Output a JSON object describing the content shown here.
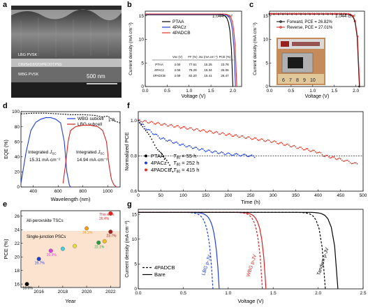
{
  "panels": {
    "a": {
      "letter": "a",
      "layers": [
        "LBG PVSK",
        "C60/SnO2/IZO/PEDOT:PSS",
        "WBG PVSK"
      ],
      "scale_bar": "500 nm"
    },
    "b": {
      "letter": "b",
      "area": "1.044 cm²",
      "ylabel": "Current density (mA cm⁻²)",
      "xlabel": "Voltage (V)",
      "legend": [
        "PTAA",
        "4PACz",
        "4PADCB"
      ],
      "table_header": [
        "",
        "Voc (V)",
        "FF (%)",
        "Jsc (mA cm⁻²)",
        "PCE (%)"
      ],
      "table_rows": [
        [
          "PTAA",
          "2.00",
          "77.61",
          "15.25",
          "23.78"
        ],
        [
          "4PACz",
          "2.06",
          "79.29",
          "15.34",
          "25.06"
        ],
        [
          "4PADCB",
          "2.09",
          "82.20",
          "15.41",
          "26.47"
        ]
      ]
    },
    "c": {
      "letter": "c",
      "area": "1.044 cm²",
      "ylabel": "Current density (mA cm⁻²)",
      "xlabel": "Voltage (V)",
      "legend": [
        "Forward, PCE = 26.82%",
        "Reverse, PCE = 27.01%"
      ]
    },
    "d": {
      "letter": "d",
      "ylabel": "EQE (%)",
      "xlabel": "Wavelength (nm)",
      "legend": [
        "WBG subcell",
        "LBG subcell"
      ],
      "oneminusr": "1-R",
      "integrated_label": "Integrated",
      "jsc_label": "J",
      "jsc_sub": "SC",
      "annot_wbg": "15.31 mA·cm⁻²",
      "annot_lbg": "14.94 mA·cm⁻²"
    },
    "e": {
      "letter": "e",
      "ylabel": "PCE (%)",
      "xlabel": "Year",
      "tag_all": "All-perovskite TSCs",
      "tag_single": "Single-junction PSCs",
      "this_work": "This work",
      "this_work_val": "26.4%"
    },
    "f": {
      "letter": "f",
      "ylabel": "Normalized PCE",
      "xlabel": "Time (h)",
      "legend": [
        {
          "name": "PTAA",
          "t80": "55 h"
        },
        {
          "name": "4PACz",
          "t80": "252 h"
        },
        {
          "name": "4PADCB",
          "t80": "415 h"
        }
      ],
      "t80_label": "T",
      "t80_sub": "80",
      "eq": "= "
    },
    "g": {
      "letter": "g",
      "ylabel": "Current density (mA cm⁻²)",
      "xlabel": "Voltage (V)",
      "legend": [
        "4PADCB",
        "Bare"
      ],
      "labels": [
        "LBG p-JV",
        "WBG p-JV",
        "Tandem p-JV"
      ]
    }
  },
  "colors": {
    "ptaa": "#000000",
    "pacz": "#1f3fd6",
    "padcb": "#e8301c",
    "red": "#d62020",
    "blue": "#1f3fd6"
  },
  "chart_data": [
    {
      "panel": "b",
      "type": "line",
      "x_range": [
        0,
        2.2
      ],
      "ylim": [
        0,
        16
      ],
      "xticks": [
        0.0,
        0.5,
        1.0,
        1.5,
        2.0
      ],
      "yticks": [
        0,
        5,
        10,
        15
      ],
      "series": [
        {
          "name": "PTAA",
          "voc": 2.0,
          "jsc": 15.25
        },
        {
          "name": "4PACz",
          "voc": 2.06,
          "jsc": 15.34
        },
        {
          "name": "4PADCB",
          "voc": 2.09,
          "jsc": 15.41
        }
      ]
    },
    {
      "panel": "c",
      "type": "line",
      "x_range": [
        0,
        2.2
      ],
      "ylim": [
        0,
        16
      ],
      "xticks": [
        0.0,
        0.5,
        1.0,
        1.5,
        2.0
      ],
      "yticks": [
        0,
        5,
        10,
        15
      ],
      "series": [
        {
          "name": "Forward, PCE = 26.82%",
          "voc": 2.08,
          "jsc": 15.4
        },
        {
          "name": "Reverse, PCE = 27.01%",
          "voc": 2.09,
          "jsc": 15.45
        }
      ]
    },
    {
      "panel": "d",
      "type": "line",
      "xlim": [
        300,
        1100
      ],
      "ylim": [
        0,
        100
      ],
      "xticks": [
        400,
        600,
        800,
        1000
      ],
      "yticks": [
        0,
        20,
        40,
        60,
        80,
        100
      ],
      "series": [
        {
          "name": "WBG subcell",
          "x": [
            300,
            340,
            380,
            420,
            460,
            500,
            540,
            580,
            620,
            650,
            670,
            690,
            700
          ],
          "y": [
            5,
            45,
            75,
            86,
            90,
            92,
            92,
            90,
            85,
            60,
            20,
            3,
            0
          ]
        },
        {
          "name": "LBG subcell",
          "x": [
            640,
            660,
            680,
            700,
            740,
            800,
            860,
            920,
            960,
            990,
            1010,
            1030,
            1050,
            1070
          ],
          "y": [
            5,
            30,
            60,
            75,
            80,
            82,
            82,
            80,
            75,
            60,
            30,
            10,
            3,
            0
          ]
        },
        {
          "name": "1-R",
          "x": [
            300,
            400,
            500,
            600,
            700,
            800,
            900,
            950,
            1000,
            1050,
            1100
          ],
          "y": [
            97,
            98,
            98,
            97,
            96,
            96,
            95,
            93,
            94,
            88,
            85
          ]
        }
      ]
    },
    {
      "panel": "e",
      "type": "scatter",
      "xlim": [
        2014.5,
        2022.8
      ],
      "ylim": [
        15.5,
        26.8
      ],
      "xticks": [
        2014,
        2016,
        2018,
        2020,
        2022
      ],
      "yticks": [
        16,
        18,
        20,
        22,
        24,
        26
      ],
      "points": [
        {
          "x": 2015,
          "y": 16.0,
          "label": "16.0%",
          "color": "#000000"
        },
        {
          "x": 2016,
          "y": 19.7,
          "label": "19.7%",
          "color": "#1f3fd6"
        },
        {
          "x": 2017,
          "y": 20.9,
          "label": "20.9%",
          "color": "#e040e0"
        },
        {
          "x": 2018,
          "y": 21.2,
          "label": "",
          "color": "#40d0e0"
        },
        {
          "x": 2019,
          "y": 21.6,
          "label": "",
          "color": "#e0e040"
        },
        {
          "x": 2020,
          "y": 24.2,
          "label": "24.2%",
          "color": "#f0a020"
        },
        {
          "x": 2021,
          "y": 22.1,
          "label": "22.1%",
          "color": "#20a040"
        },
        {
          "x": 2021.5,
          "y": 22.3,
          "label": "",
          "color": "#f0c020"
        },
        {
          "x": 2022,
          "y": 23.7,
          "label": "23.7%",
          "color": "#a02020"
        },
        {
          "x": 2022,
          "y": 26.4,
          "label": "",
          "color": "#e82020"
        }
      ]
    },
    {
      "panel": "f",
      "type": "line",
      "xlim": [
        0,
        500
      ],
      "ylim": [
        0.6,
        1.05
      ],
      "xticks": [
        0,
        50,
        100,
        150,
        200,
        250,
        300,
        350,
        400,
        450,
        500
      ],
      "yticks": [
        0.6,
        0.8,
        1.0
      ],
      "series": [
        {
          "name": "PTAA",
          "x": [
            0,
            10,
            20,
            30,
            40,
            50,
            55,
            60,
            70,
            80
          ],
          "y": [
            1.0,
            0.97,
            0.93,
            0.89,
            0.85,
            0.82,
            0.8,
            0.78,
            0.75,
            0.7
          ]
        },
        {
          "name": "4PACz",
          "x": [
            0,
            20,
            50,
            100,
            150,
            200,
            252,
            262
          ],
          "y": [
            1.0,
            0.95,
            0.9,
            0.86,
            0.83,
            0.81,
            0.8,
            0.78
          ]
        },
        {
          "name": "4PADCB",
          "x": [
            0,
            50,
            100,
            150,
            200,
            250,
            300,
            350,
            400,
            415,
            450,
            490
          ],
          "y": [
            1.0,
            0.98,
            0.96,
            0.94,
            0.92,
            0.9,
            0.88,
            0.85,
            0.82,
            0.8,
            0.78,
            0.75
          ]
        }
      ],
      "reference_line": 0.8
    },
    {
      "panel": "g",
      "type": "line",
      "xlim": [
        0,
        2.5
      ],
      "ylim": [
        0,
        16
      ],
      "xticks": [
        0.0,
        0.5,
        1.0,
        1.5,
        2.0,
        2.5
      ],
      "yticks": [
        0,
        5,
        10,
        15
      ],
      "series": [
        {
          "name": "LBG p-JV 4PADCB",
          "voc": 0.83,
          "jsc": 15.4,
          "style": "dash",
          "color": "#1f3fd6"
        },
        {
          "name": "LBG p-JV Bare",
          "voc": 0.9,
          "jsc": 15.4,
          "style": "solid",
          "color": "#1f3fd6"
        },
        {
          "name": "WBG p-JV 4PADCB",
          "voc": 1.38,
          "jsc": 15.4,
          "style": "dash",
          "color": "#d62020"
        },
        {
          "name": "WBG p-JV Bare",
          "voc": 1.42,
          "jsc": 15.4,
          "style": "solid",
          "color": "#d62020"
        },
        {
          "name": "Tandem p-JV 4PADCB",
          "voc": 2.08,
          "jsc": 15.4,
          "style": "dash",
          "color": "#000000"
        },
        {
          "name": "Tandem p-JV Bare",
          "voc": 2.22,
          "jsc": 15.4,
          "style": "solid",
          "color": "#000000"
        }
      ]
    }
  ]
}
